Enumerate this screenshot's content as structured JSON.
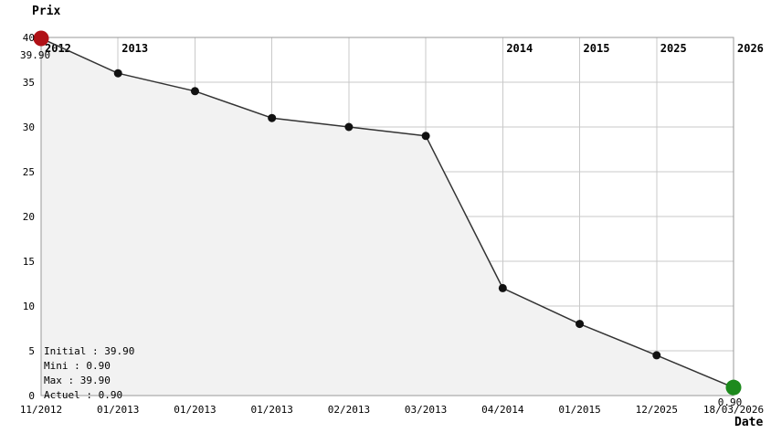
{
  "chart_data": {
    "type": "line",
    "title": "Prix",
    "xlabel": "Date",
    "ylabel": "Prix",
    "ylim": [
      0,
      40
    ],
    "ytick_step": 5,
    "grid": true,
    "legend_position": "bottom-left",
    "points": [
      {
        "date": "11/2012",
        "value": 39.9,
        "year_label": "2012",
        "marker": "initial"
      },
      {
        "date": "01/2013",
        "value": 36,
        "year_label": "2013"
      },
      {
        "date": "01/2013",
        "value": 34
      },
      {
        "date": "01/2013",
        "value": 31
      },
      {
        "date": "02/2013",
        "value": 30
      },
      {
        "date": "03/2013",
        "value": 29
      },
      {
        "date": "04/2014",
        "value": 12,
        "year_label": "2014"
      },
      {
        "date": "01/2015",
        "value": 8,
        "year_label": "2015"
      },
      {
        "date": "12/2025",
        "value": 4.5,
        "year_label": "2025"
      },
      {
        "date": "18/03/2026",
        "value": 0.9,
        "year_label": "2026",
        "marker": "current"
      }
    ],
    "annotations": {
      "initial_price": "39.90",
      "current_price": "0.90"
    },
    "legend": [
      {
        "label": "Initial : 39.90",
        "color": "#000000"
      },
      {
        "label": "Mini : 0.90",
        "color": "#008000"
      },
      {
        "label": "Max : 39.90",
        "color": "#990000"
      },
      {
        "label": "Actuel : 0.90",
        "color": "#000000"
      }
    ]
  },
  "colors": {
    "line": "#333333",
    "point": "#111111",
    "initial_point": "#b01116",
    "current_point": "#1d8a1d",
    "initial_text": "#c22222",
    "current_text": "#1d8a1d",
    "area_fill": "#f2f2f2",
    "grid": "#c9c9c9",
    "border": "#999999",
    "text": "#000000"
  }
}
